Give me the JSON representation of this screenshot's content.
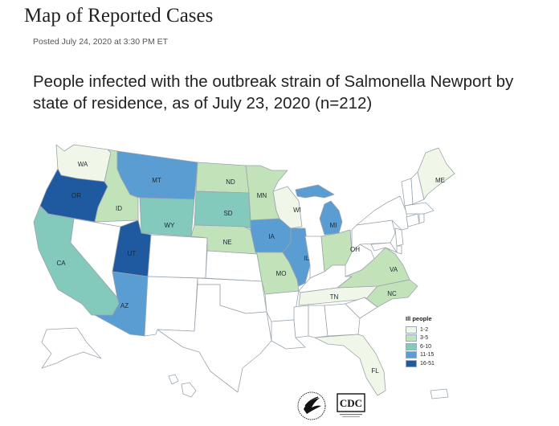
{
  "page": {
    "title": "Map of Reported Cases",
    "posted": "Posted July 24, 2020 at 3:30 PM ET",
    "heading": "People infected with the outbreak strain of Salmonella Newport by state of residence, as of July 23, 2020 (n=212)"
  },
  "legend": {
    "title": "Ill people",
    "bins": [
      {
        "label": "1-2",
        "color": "#f1f7e8"
      },
      {
        "label": "3-5",
        "color": "#c2e3ba"
      },
      {
        "label": "6-10",
        "color": "#83c9bc"
      },
      {
        "label": "11-15",
        "color": "#5a9dd2"
      },
      {
        "label": "16-51",
        "color": "#1f5aa0"
      }
    ]
  },
  "colors": {
    "none": "#ffffff",
    "border": "#9aa4ad"
  },
  "states": [
    {
      "abbr": "WA",
      "bin": 0
    },
    {
      "abbr": "OR",
      "bin": 4
    },
    {
      "abbr": "CA",
      "bin": 2
    },
    {
      "abbr": "ID",
      "bin": 1
    },
    {
      "abbr": "MT",
      "bin": 3
    },
    {
      "abbr": "WY",
      "bin": 2
    },
    {
      "abbr": "UT",
      "bin": 4
    },
    {
      "abbr": "AZ",
      "bin": 3
    },
    {
      "abbr": "ND",
      "bin": 1
    },
    {
      "abbr": "SD",
      "bin": 2
    },
    {
      "abbr": "NE",
      "bin": 1
    },
    {
      "abbr": "MN",
      "bin": 1
    },
    {
      "abbr": "IA",
      "bin": 3
    },
    {
      "abbr": "MO",
      "bin": 1
    },
    {
      "abbr": "WI",
      "bin": 0
    },
    {
      "abbr": "IL",
      "bin": 3
    },
    {
      "abbr": "MI",
      "bin": 3
    },
    {
      "abbr": "OH",
      "bin": 1
    },
    {
      "abbr": "TN",
      "bin": 0
    },
    {
      "abbr": "VA",
      "bin": 1
    },
    {
      "abbr": "NC",
      "bin": 1
    },
    {
      "abbr": "FL",
      "bin": 0
    },
    {
      "abbr": "ME",
      "bin": 0
    }
  ],
  "logos": {
    "hhs": "hhs-eagle-icon",
    "cdc": "CDC"
  }
}
